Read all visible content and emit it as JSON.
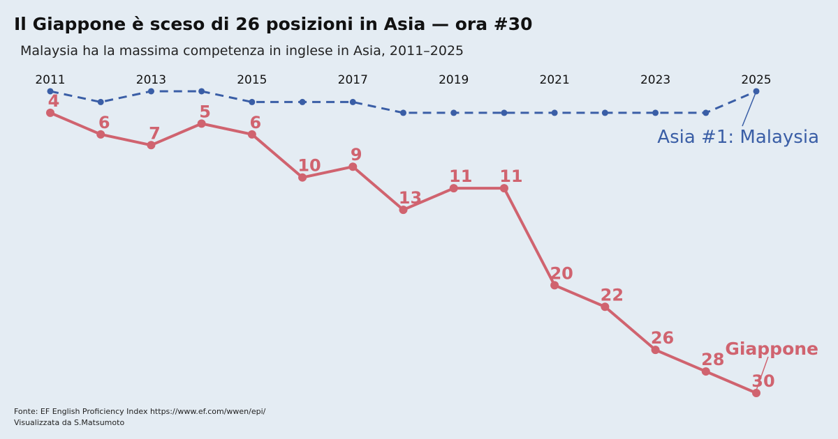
{
  "title": "Il Giappone è sceso di 26 posizioni in Asia — ora #30",
  "subtitle": "Malaysia ha la massima competenza in inglese in Asia, 2011–2025",
  "footer": {
    "source": "Fonte: EF English Proficiency Index https://www.ef.com/wwen/epi/",
    "credit": "Visualizzata da S.Matsumoto"
  },
  "colors": {
    "japan": "#d0636f",
    "malaysia": "#3a5ea6",
    "background": "#e4ecf3"
  },
  "chart_data": {
    "type": "line",
    "x": [
      2011,
      2012,
      2013,
      2014,
      2015,
      2016,
      2017,
      2018,
      2019,
      2020,
      2021,
      2022,
      2023,
      2024,
      2025
    ],
    "x_tick_labels": [
      "2011",
      "2013",
      "2015",
      "2017",
      "2019",
      "2021",
      "2023",
      "2025"
    ],
    "x_axis_position": "top",
    "y_inverted": true,
    "grid": false,
    "legend": "none",
    "series": [
      {
        "name": "Giappone",
        "style": "solid",
        "show_labels": true,
        "values": [
          4,
          6,
          7,
          5,
          6,
          10,
          9,
          13,
          11,
          11,
          20,
          22,
          26,
          28,
          30
        ]
      },
      {
        "name": "Asia #1: Malaysia",
        "style": "dashed",
        "show_labels": false,
        "values": [
          2,
          3,
          2,
          2,
          3,
          3,
          3,
          4,
          4,
          4,
          4,
          4,
          4,
          4,
          2
        ]
      }
    ]
  }
}
